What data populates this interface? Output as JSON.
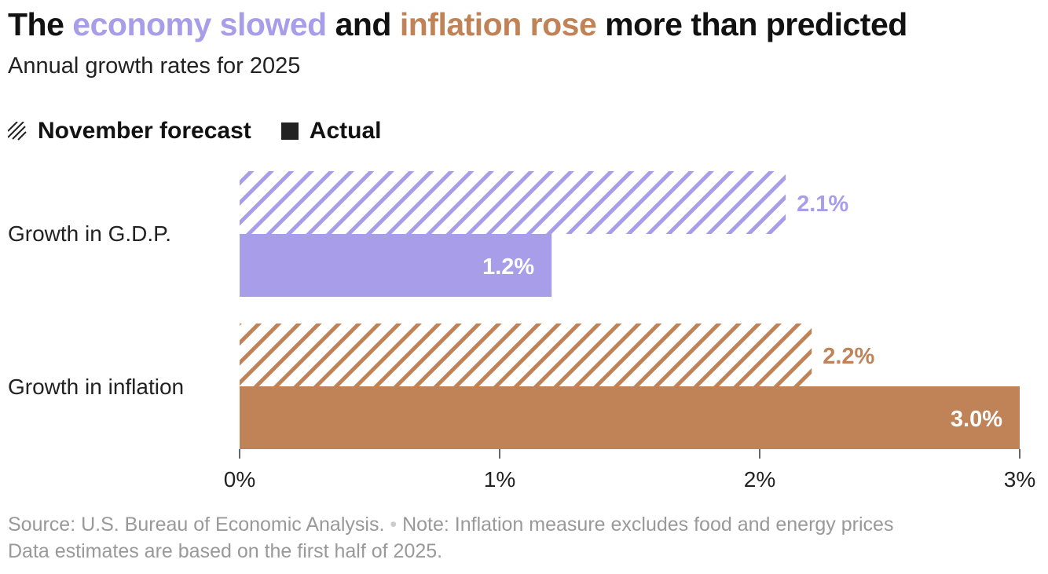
{
  "title": {
    "prefix": "The ",
    "highlight1": "economy slowed",
    "middle": " and ",
    "highlight2": "inflation rose",
    "suffix": " more than predicted"
  },
  "subtitle": "Annual growth rates for 2025",
  "legend": {
    "forecast_label": "November forecast",
    "actual_label": "Actual"
  },
  "colors": {
    "gdp": "#a89de8",
    "inflation": "#c08257",
    "text": "#121212"
  },
  "chart_data": {
    "type": "bar",
    "orientation": "horizontal",
    "title": "The economy slowed and inflation rose more than predicted",
    "subtitle": "Annual growth rates for 2025",
    "categories": [
      "Growth in G.D.P.",
      "Growth in inflation"
    ],
    "series": [
      {
        "name": "November forecast",
        "style": "hatched",
        "values": [
          2.1,
          2.2
        ],
        "labels": [
          "2.1%",
          "2.2%"
        ]
      },
      {
        "name": "Actual",
        "style": "solid",
        "values": [
          1.2,
          3.0
        ],
        "labels": [
          "1.2%",
          "3.0%"
        ]
      }
    ],
    "xlim": [
      0,
      3
    ],
    "xticks": [
      0,
      1,
      2,
      3
    ],
    "xtick_labels": [
      "0%",
      "1%",
      "2%",
      "3%"
    ],
    "legend_position": "top-left"
  },
  "footer": {
    "source": "Source: U.S. Bureau of Economic Analysis.",
    "separator": "•",
    "note": "Note: Inflation measure excludes food and energy prices",
    "line2": "Data estimates are based on the first half of 2025."
  }
}
